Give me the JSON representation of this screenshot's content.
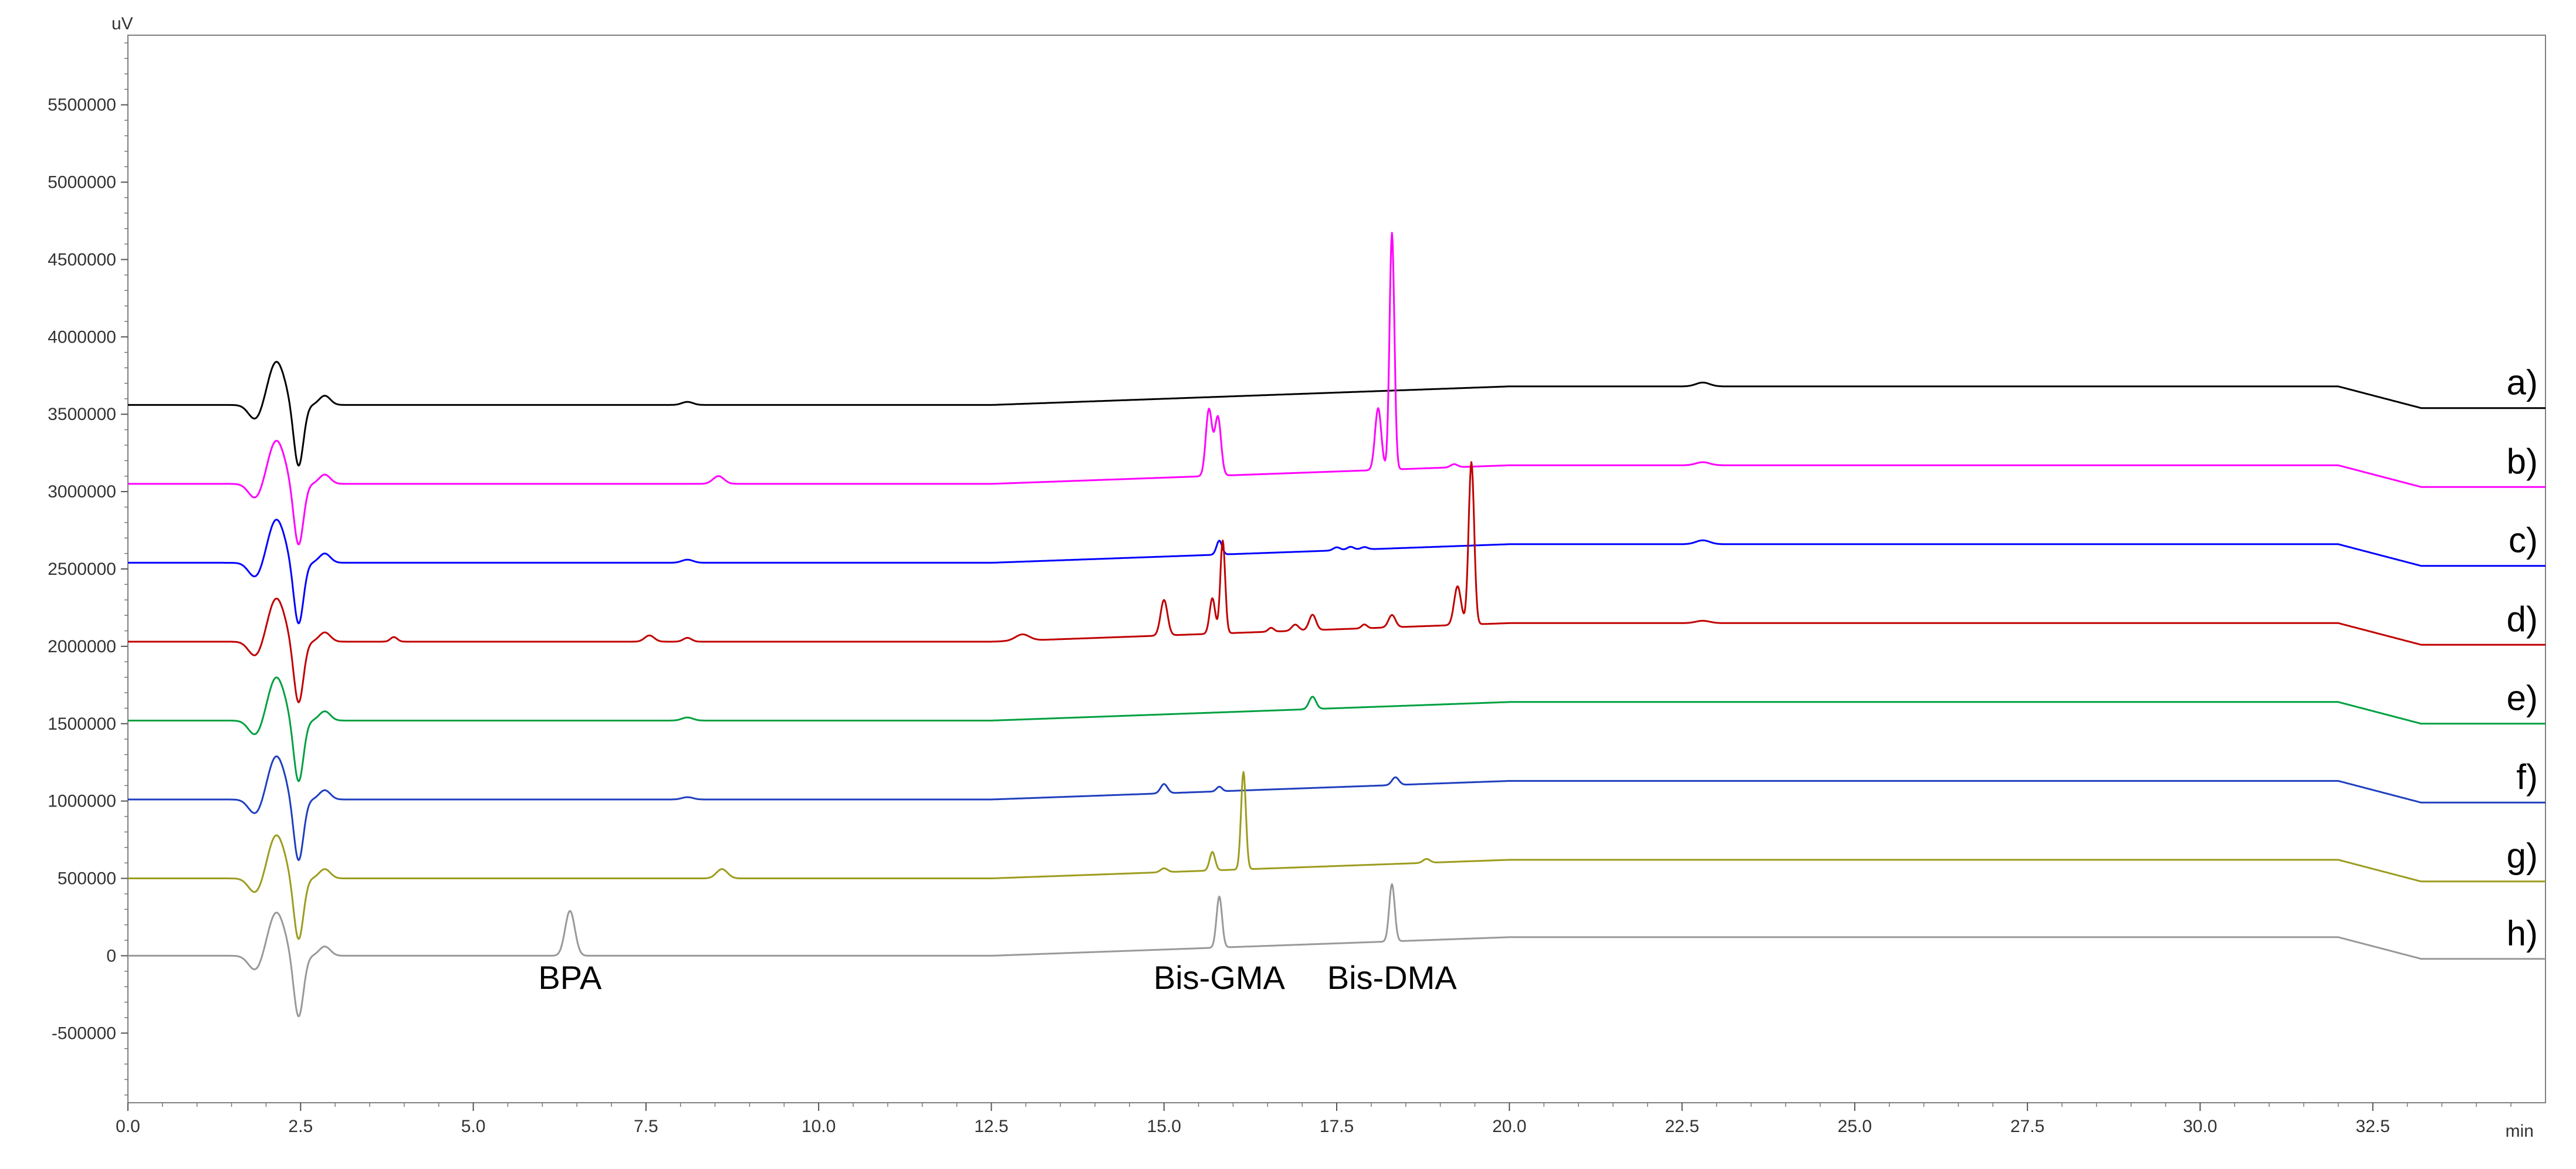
{
  "chart_data": {
    "type": "line",
    "title": "",
    "ylabel_unit": "uV",
    "xlabel_unit": "min",
    "xlim": [
      0,
      35
    ],
    "ylim": [
      -950000,
      5950000
    ],
    "grid": false,
    "x_ticks": [
      {
        "value": 0,
        "label": "0.0"
      },
      {
        "value": 2.5,
        "label": "2.5"
      },
      {
        "value": 5,
        "label": "5.0"
      },
      {
        "value": 7.5,
        "label": "7.5"
      },
      {
        "value": 10,
        "label": "10.0"
      },
      {
        "value": 12.5,
        "label": "12.5"
      },
      {
        "value": 15,
        "label": "15.0"
      },
      {
        "value": 17.5,
        "label": "17.5"
      },
      {
        "value": 20,
        "label": "20.0"
      },
      {
        "value": 22.5,
        "label": "22.5"
      },
      {
        "value": 25,
        "label": "25.0"
      },
      {
        "value": 27.5,
        "label": "27.5"
      },
      {
        "value": 30,
        "label": "30.0"
      },
      {
        "value": 32.5,
        "label": "32.5"
      }
    ],
    "y_ticks": [
      {
        "value": 5500000,
        "label": "5500000"
      },
      {
        "value": 5000000,
        "label": "5000000"
      },
      {
        "value": 4500000,
        "label": "4500000"
      },
      {
        "value": 4000000,
        "label": "4000000"
      },
      {
        "value": 3500000,
        "label": "3500000"
      },
      {
        "value": 3000000,
        "label": "3000000"
      },
      {
        "value": 2500000,
        "label": "2500000"
      },
      {
        "value": 2000000,
        "label": "2000000"
      },
      {
        "value": 1500000,
        "label": "1500000"
      },
      {
        "value": 1000000,
        "label": "1000000"
      },
      {
        "value": 500000,
        "label": "500000"
      },
      {
        "value": 0,
        "label": "0"
      },
      {
        "value": -500000,
        "label": "-500000"
      }
    ],
    "series": [
      {
        "name": "a)",
        "color": "#000000",
        "offset": 3560000,
        "rise": 120000,
        "inj": [
          280000,
          -400000
        ],
        "peaks": [
          [
            8.1,
            20000,
            0.08
          ],
          [
            22.8,
            25000,
            0.1
          ]
        ]
      },
      {
        "name": "b)",
        "color": "#ff00ff",
        "offset": 3050000,
        "rise": 120000,
        "inj": [
          280000,
          -400000
        ],
        "peaks": [
          [
            8.55,
            50000,
            0.08
          ],
          [
            15.65,
            430000,
            0.045
          ],
          [
            15.78,
            380000,
            0.045
          ],
          [
            18.1,
            400000,
            0.045
          ],
          [
            18.3,
            1530000,
            0.035
          ],
          [
            19.2,
            20000,
            0.05
          ],
          [
            22.8,
            20000,
            0.1
          ]
        ]
      },
      {
        "name": "c)",
        "color": "#0000ff",
        "offset": 2540000,
        "rise": 120000,
        "inj": [
          280000,
          -400000
        ],
        "peaks": [
          [
            8.1,
            20000,
            0.08
          ],
          [
            15.8,
            90000,
            0.04
          ],
          [
            17.5,
            20000,
            0.05
          ],
          [
            17.7,
            20000,
            0.05
          ],
          [
            17.9,
            15000,
            0.05
          ],
          [
            22.8,
            25000,
            0.1
          ]
        ]
      },
      {
        "name": "d)",
        "color": "#c00000",
        "offset": 2030000,
        "rise": 120000,
        "inj": [
          280000,
          -400000
        ],
        "peaks": [
          [
            3.85,
            30000,
            0.05
          ],
          [
            7.55,
            40000,
            0.07
          ],
          [
            8.1,
            25000,
            0.06
          ],
          [
            12.95,
            40000,
            0.1
          ],
          [
            15.0,
            230000,
            0.05
          ],
          [
            15.7,
            230000,
            0.04
          ],
          [
            15.85,
            600000,
            0.035
          ],
          [
            16.55,
            25000,
            0.04
          ],
          [
            16.9,
            40000,
            0.05
          ],
          [
            17.15,
            100000,
            0.05
          ],
          [
            17.9,
            25000,
            0.04
          ],
          [
            18.3,
            80000,
            0.05
          ],
          [
            19.25,
            250000,
            0.05
          ],
          [
            19.45,
            1050000,
            0.04
          ],
          [
            22.8,
            15000,
            0.1
          ]
        ]
      },
      {
        "name": "e)",
        "color": "#00a040",
        "offset": 1520000,
        "rise": 120000,
        "inj": [
          280000,
          -400000
        ],
        "peaks": [
          [
            8.1,
            20000,
            0.08
          ],
          [
            17.15,
            80000,
            0.05
          ]
        ]
      },
      {
        "name": "f)",
        "color": "#1f3fbf",
        "offset": 1010000,
        "rise": 120000,
        "inj": [
          280000,
          -400000
        ],
        "peaks": [
          [
            8.1,
            15000,
            0.08
          ],
          [
            15.0,
            60000,
            0.05
          ],
          [
            15.8,
            30000,
            0.04
          ],
          [
            18.35,
            50000,
            0.05
          ]
        ]
      },
      {
        "name": "g)",
        "color": "#9c9c1e",
        "offset": 500000,
        "rise": 120000,
        "inj": [
          280000,
          -400000
        ],
        "peaks": [
          [
            8.6,
            60000,
            0.08
          ],
          [
            15.0,
            25000,
            0.05
          ],
          [
            15.7,
            120000,
            0.04
          ],
          [
            16.15,
            630000,
            0.035
          ],
          [
            18.8,
            25000,
            0.05
          ]
        ]
      },
      {
        "name": "h)",
        "color": "#999999",
        "offset": 0,
        "rise": 120000,
        "inj": [
          280000,
          -400000
        ],
        "peaks": [
          [
            6.4,
            290000,
            0.07
          ],
          [
            15.8,
            330000,
            0.04
          ],
          [
            18.3,
            370000,
            0.04
          ]
        ]
      }
    ],
    "annotations": [
      {
        "text": "BPA",
        "x": 6.4
      },
      {
        "text": "Bis-GMA",
        "x": 15.8
      },
      {
        "text": "Bis-DMA",
        "x": 18.3
      }
    ]
  }
}
